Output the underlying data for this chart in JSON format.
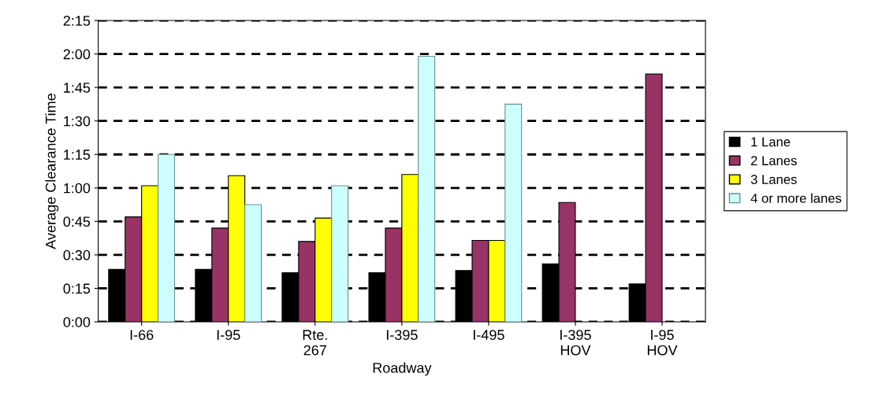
{
  "chart_data": {
    "type": "bar",
    "xlabel": "Roadway",
    "ylabel": "Average Clearance Time",
    "categories": [
      "I-66",
      "I-95",
      "Rte.\n267",
      "I-395",
      "I-495",
      "I-395\nHOV",
      "I-95\nHOV"
    ],
    "series": [
      {
        "name": "1 Lane",
        "color": "#000000",
        "values": [
          23.5,
          23.5,
          22,
          22,
          23,
          26,
          17
        ]
      },
      {
        "name": "2 Lanes",
        "color": "#993366",
        "values": [
          47,
          42,
          36,
          42,
          36.5,
          53.5,
          111
        ]
      },
      {
        "name": "3 Lanes",
        "color": "#ffff00",
        "values": [
          61,
          65.5,
          46.5,
          66,
          36.5,
          null,
          null
        ]
      },
      {
        "name": "4 or more lanes",
        "color": "#ccffff",
        "values": [
          75,
          52.5,
          61,
          119,
          97.5,
          null,
          null
        ]
      }
    ],
    "ylim": [
      0,
      135
    ],
    "yticks": [
      {
        "value": 0,
        "label": "0:00"
      },
      {
        "value": 15,
        "label": "0:15"
      },
      {
        "value": 30,
        "label": "0:30"
      },
      {
        "value": 45,
        "label": "0:45"
      },
      {
        "value": 60,
        "label": "1:00"
      },
      {
        "value": 75,
        "label": "1:15"
      },
      {
        "value": 90,
        "label": "1:30"
      },
      {
        "value": 105,
        "label": "1:45"
      },
      {
        "value": 120,
        "label": "2:00"
      },
      {
        "value": 135,
        "label": "2:15"
      }
    ],
    "grid": "y",
    "legend": "right"
  }
}
